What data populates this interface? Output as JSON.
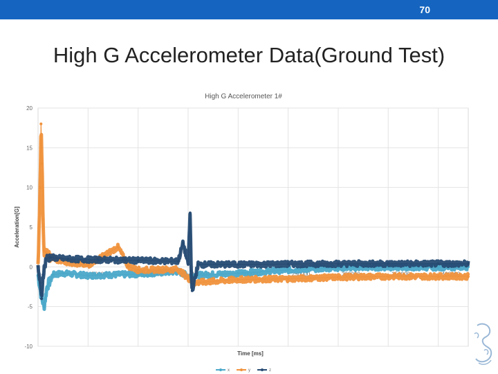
{
  "slide": {
    "page_number": "70",
    "title": "High G Accelerometer Data(Ground Test)"
  },
  "colors": {
    "header_bar": "#1565c0",
    "series_x": "#4aa8c9",
    "series_y": "#f0923c",
    "series_z": "#264b73"
  },
  "logo": {
    "icon": "sketch-logo-icon"
  },
  "chart_data": {
    "type": "line",
    "title": "High G Accelerometer 1#",
    "xlabel": "Time [ms]",
    "ylabel": "Acceleration[G]",
    "ylim": [
      -10,
      20
    ],
    "xlim": [
      0,
      430000
    ],
    "yticks": [
      "-10",
      "-5",
      "0",
      "5",
      "10",
      "15",
      "20"
    ],
    "xtick_labels": [
      "50000",
      "100000",
      "150000",
      "200000",
      "250000",
      "300000",
      "350000",
      "400000"
    ],
    "x_gridlines_at": [
      50000,
      100000,
      150000,
      200000,
      250000,
      300000,
      350000,
      400000
    ],
    "grid": true,
    "legend_position": "bottom",
    "series": [
      {
        "name": "x",
        "color": "#4aa8c9",
        "x": [
          0,
          3000,
          6000,
          9000,
          15000,
          25000,
          50000,
          100000,
          140000,
          150000,
          200000,
          250000,
          300000,
          350000,
          400000,
          430000
        ],
        "y": [
          -1,
          -3.5,
          -5,
          -2.5,
          -1,
          -0.8,
          -1.1,
          -0.9,
          -0.6,
          -1.1,
          -0.8,
          -0.4,
          -0.1,
          -0.05,
          -0.05,
          0.0
        ]
      },
      {
        "name": "y",
        "color": "#f0923c",
        "x": [
          0,
          2000,
          3000,
          4000,
          5000,
          6000,
          8000,
          10000,
          20000,
          50000,
          80000,
          90000,
          100000,
          140000,
          150000,
          155000,
          200000,
          250000,
          300000,
          350000,
          400000,
          430000
        ],
        "y": [
          0,
          10,
          18,
          13,
          6,
          2,
          1.8,
          1.4,
          0.8,
          0.2,
          2.5,
          0.1,
          -0.4,
          -0.3,
          -1.4,
          -2.0,
          -1.6,
          -1.5,
          -1.3,
          -1.2,
          -1.2,
          -1.2
        ]
      },
      {
        "name": "z",
        "color": "#264b73",
        "x": [
          0,
          2000,
          3500,
          5000,
          8000,
          12000,
          30000,
          60000,
          100000,
          140000,
          145000,
          150000,
          152000,
          153000,
          154000,
          160000,
          200000,
          250000,
          300000,
          350000,
          400000,
          430000
        ],
        "y": [
          0,
          -2,
          -4,
          -1,
          1,
          1.2,
          1.0,
          0.9,
          0.8,
          0.7,
          3.0,
          0.3,
          6.8,
          -0.5,
          -3.0,
          0.3,
          0.3,
          0.35,
          0.4,
          0.4,
          0.4,
          0.4
        ]
      }
    ]
  }
}
